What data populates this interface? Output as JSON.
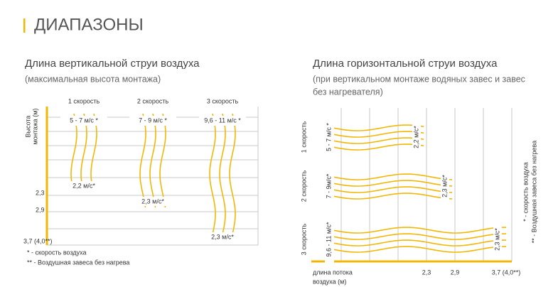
{
  "header": {
    "title": "ДИАПАЗОНЫ"
  },
  "vertical": {
    "title": "Длина вертикальной струи воздуха",
    "subtitle": "(максимальная высота монтажа)",
    "axis_label_lines": [
      "Высота",
      "монтажа (м)"
    ],
    "columns": [
      {
        "label": "1 скорость",
        "speed": "5 - 7 м/с *",
        "end": "2,2 м/с*"
      },
      {
        "label": "2 скорость",
        "speed": "7 - 9 м/с *",
        "end": "2,3 м/с*"
      },
      {
        "label": "3 скорость",
        "speed": "9,6 - 11 м/с *",
        "end": "2,3 м/с*"
      }
    ],
    "ticks": [
      "2,3",
      "2,9",
      "3,7 (4,0**)"
    ],
    "notes": [
      "* - скорость воздуха",
      "** - Воздушная завеса без нагрева"
    ]
  },
  "horizontal": {
    "title": "Длина горизонтальной струи воздуха",
    "subtitle_lines": [
      "(при вертикальном монтаже водяных завес и завес",
      "без нагревателя)"
    ],
    "rows": [
      {
        "label": "1 скорость",
        "speed": "5 - 7 м/с *",
        "end": "2,2 м/с*"
      },
      {
        "label": "2 скорость",
        "speed": "7 - 9м/с*",
        "end": "2,3 м/с*"
      },
      {
        "label": "3 скорость",
        "speed": "9,6 - 11 м/с*",
        "end": "2,3 м/с*"
      }
    ],
    "axis_label_lines": [
      "длина потока",
      "воздуха (м)"
    ],
    "ticks": [
      "2,3",
      "2,9",
      "3,7 (4,0**)"
    ],
    "notes": [
      "* - скорость воздуха",
      "** - Воздушная завеса без нагрева"
    ]
  }
}
